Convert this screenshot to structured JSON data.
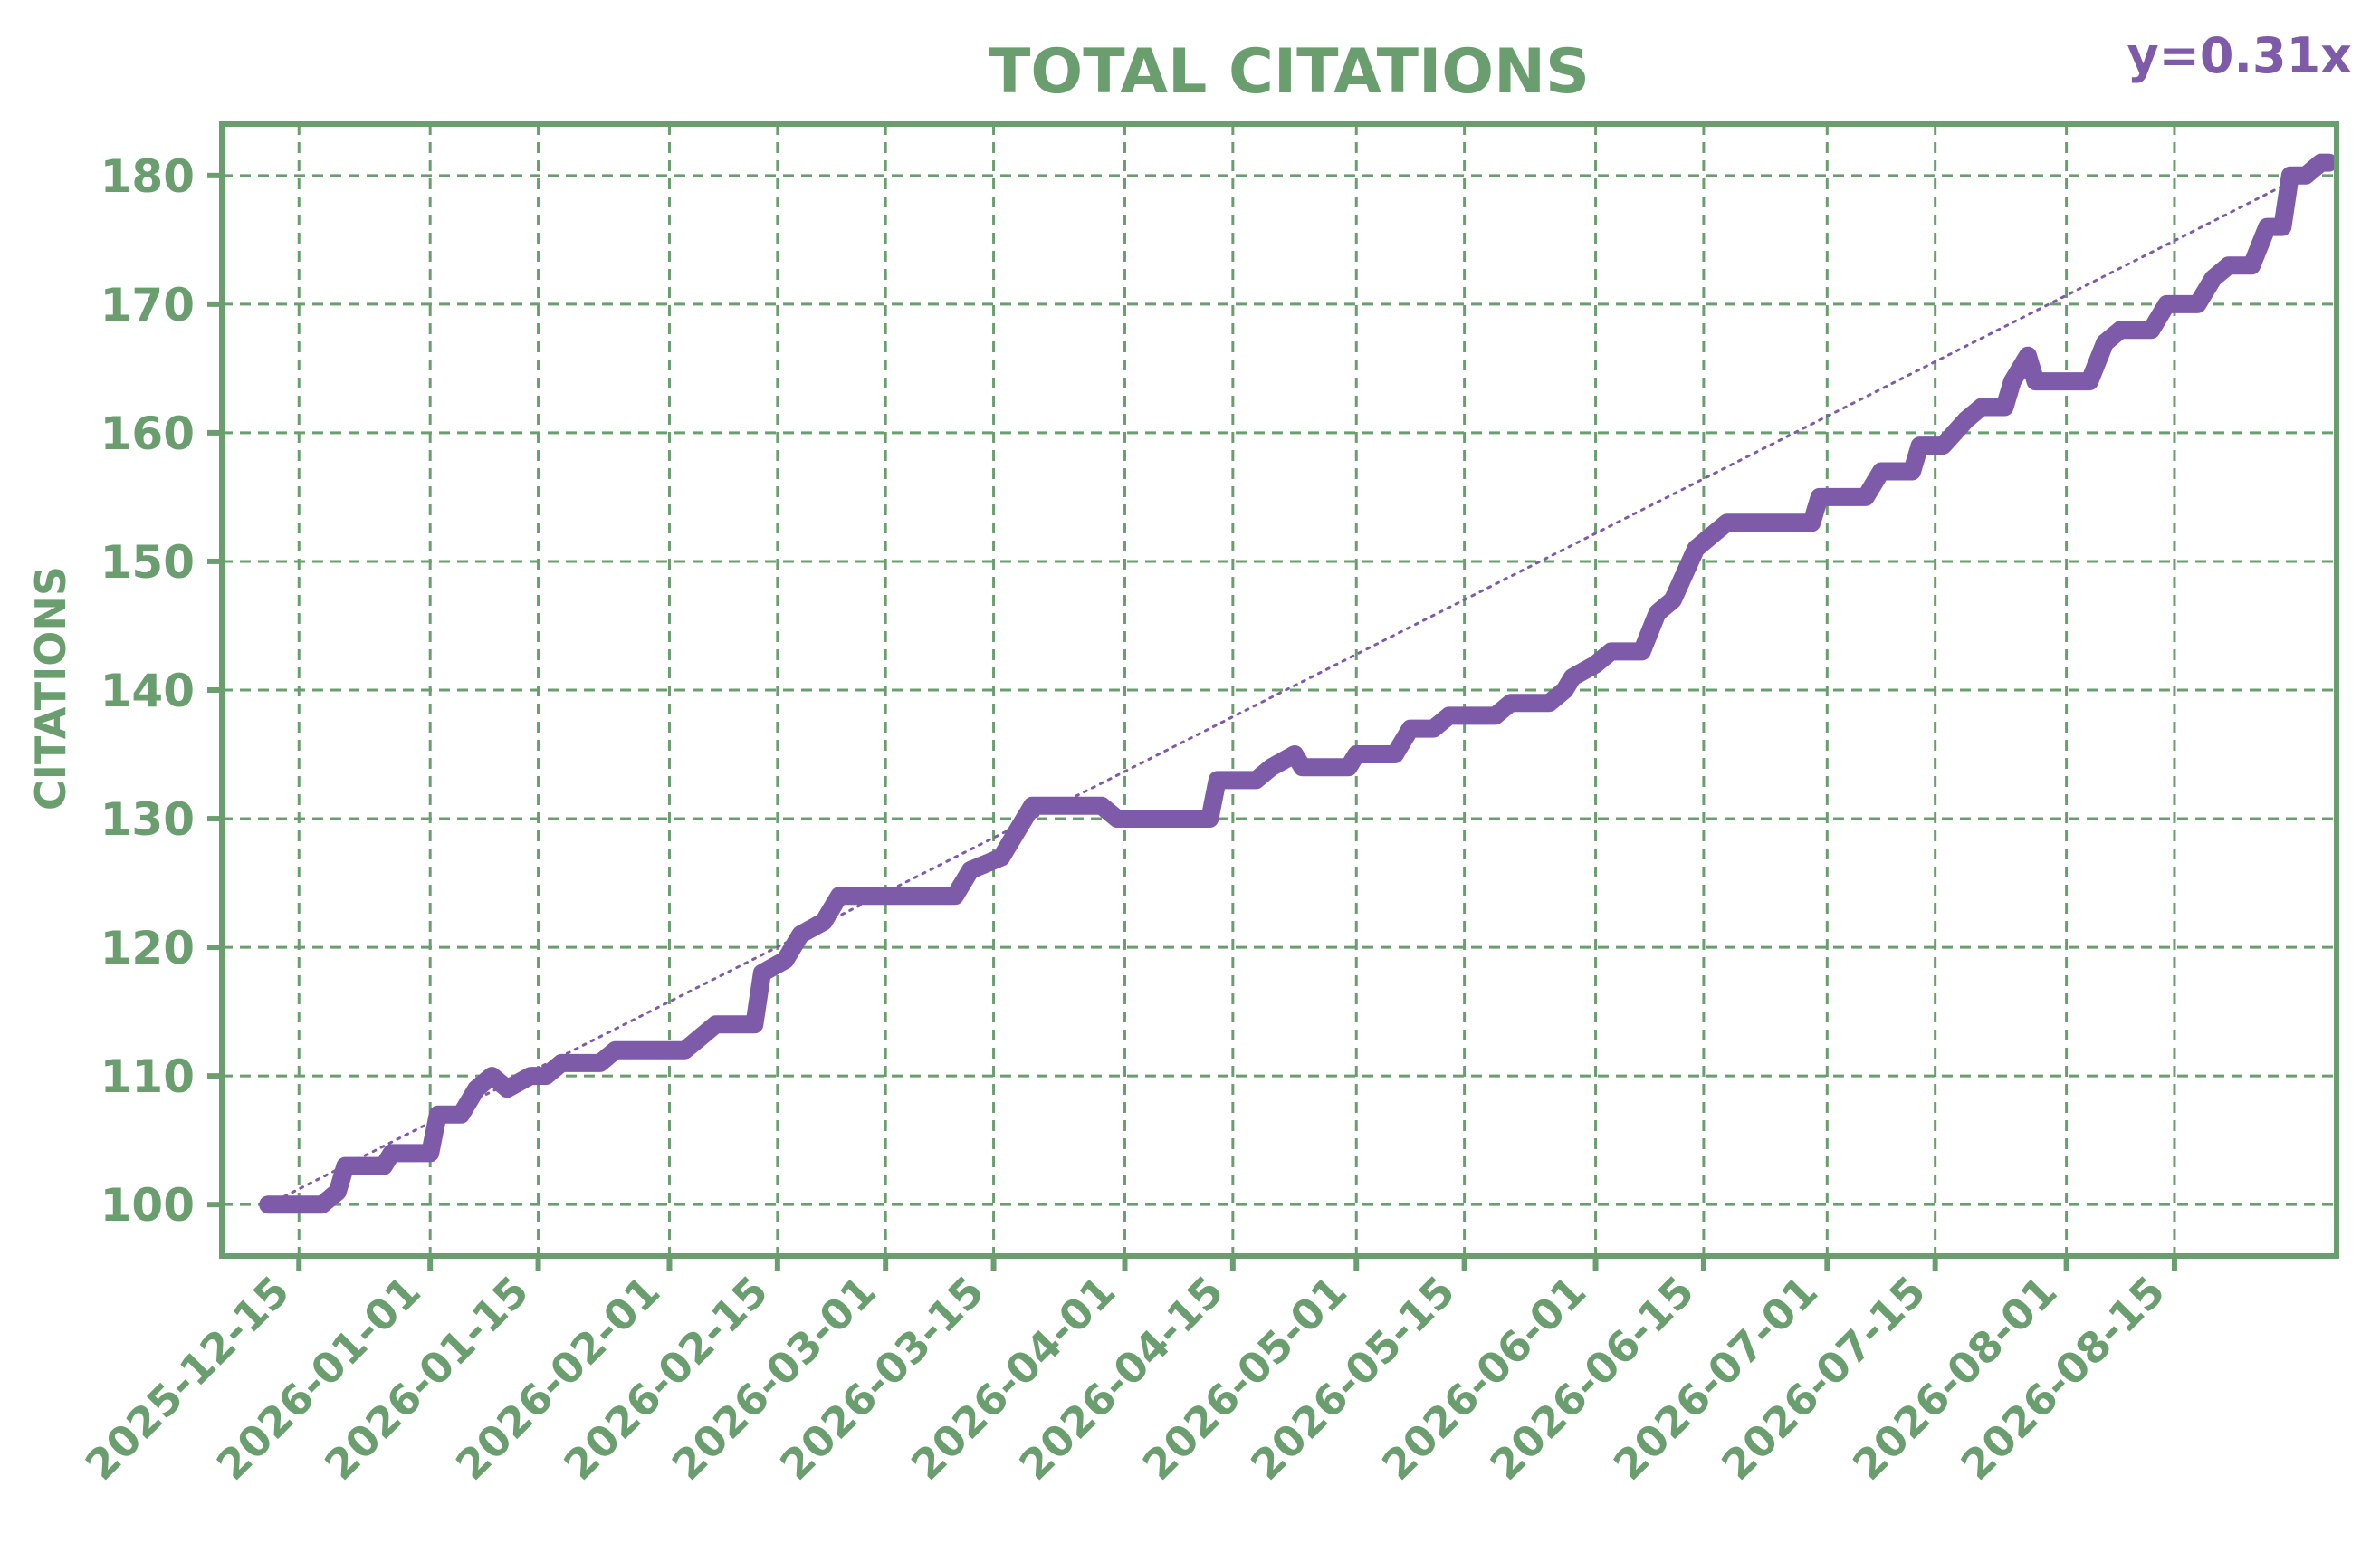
{
  "colors": {
    "axis": "#6b9e6f",
    "grid": "#6b9e6f",
    "series": "#7e5ba8",
    "trend": "#7e5ba8",
    "background": "#ffffff"
  },
  "chart_data": {
    "type": "line",
    "title": "TOTAL CITATIONS",
    "xlabel": "",
    "ylabel": "CITATIONS",
    "annotation": "y=0.31x",
    "grid": true,
    "xlim": [
      "2025-12-05",
      "2026-09-05"
    ],
    "ylim": [
      96,
      184
    ],
    "x_ticks": [
      "2025-12-15",
      "2026-01-01",
      "2026-01-15",
      "2026-02-01",
      "2026-02-15",
      "2026-03-01",
      "2026-03-15",
      "2026-04-01",
      "2026-04-15",
      "2026-05-01",
      "2026-05-15",
      "2026-06-01",
      "2026-06-15",
      "2026-07-01",
      "2026-07-15",
      "2026-08-01",
      "2026-08-15"
    ],
    "y_ticks": [
      100,
      110,
      120,
      130,
      140,
      150,
      160,
      170,
      180
    ],
    "series": [
      {
        "values": [
          [
            "2025-12-11",
            100
          ],
          [
            "2025-12-15",
            100
          ],
          [
            "2025-12-18",
            100
          ],
          [
            "2025-12-20",
            101
          ],
          [
            "2025-12-21",
            103
          ],
          [
            "2025-12-26",
            103
          ],
          [
            "2025-12-27",
            104
          ],
          [
            "2025-12-31",
            104
          ],
          [
            "2026-01-01",
            104
          ],
          [
            "2026-01-02",
            107
          ],
          [
            "2026-01-05",
            107
          ],
          [
            "2026-01-07",
            109
          ],
          [
            "2026-01-09",
            110
          ],
          [
            "2026-01-11",
            109
          ],
          [
            "2026-01-14",
            110
          ],
          [
            "2026-01-16",
            110
          ],
          [
            "2026-01-18",
            111
          ],
          [
            "2026-01-23",
            111
          ],
          [
            "2026-01-25",
            112
          ],
          [
            "2026-02-03",
            112
          ],
          [
            "2026-02-05",
            113
          ],
          [
            "2026-02-07",
            114
          ],
          [
            "2026-02-12",
            114
          ],
          [
            "2026-02-13",
            118
          ],
          [
            "2026-02-16",
            119
          ],
          [
            "2026-02-18",
            121
          ],
          [
            "2026-02-21",
            122
          ],
          [
            "2026-02-23",
            124
          ],
          [
            "2026-03-01",
            124
          ],
          [
            "2026-03-10",
            124
          ],
          [
            "2026-03-12",
            126
          ],
          [
            "2026-03-16",
            127
          ],
          [
            "2026-03-18",
            129
          ],
          [
            "2026-03-20",
            131
          ],
          [
            "2026-03-29",
            131
          ],
          [
            "2026-03-31",
            130
          ],
          [
            "2026-04-05",
            130
          ],
          [
            "2026-04-12",
            130
          ],
          [
            "2026-04-13",
            133
          ],
          [
            "2026-04-18",
            133
          ],
          [
            "2026-04-20",
            134
          ],
          [
            "2026-04-23",
            135
          ],
          [
            "2026-04-24",
            134
          ],
          [
            "2026-04-30",
            134
          ],
          [
            "2026-05-01",
            135
          ],
          [
            "2026-05-06",
            135
          ],
          [
            "2026-05-08",
            137
          ],
          [
            "2026-05-11",
            137
          ],
          [
            "2026-05-13",
            138
          ],
          [
            "2026-05-19",
            138
          ],
          [
            "2026-05-21",
            139
          ],
          [
            "2026-05-26",
            139
          ],
          [
            "2026-05-28",
            140
          ],
          [
            "2026-05-29",
            141
          ],
          [
            "2026-06-01",
            142
          ],
          [
            "2026-06-03",
            143
          ],
          [
            "2026-06-07",
            143
          ],
          [
            "2026-06-09",
            146
          ],
          [
            "2026-06-11",
            147
          ],
          [
            "2026-06-14",
            151
          ],
          [
            "2026-06-16",
            152
          ],
          [
            "2026-06-18",
            153
          ],
          [
            "2026-06-25",
            153
          ],
          [
            "2026-06-29",
            153
          ],
          [
            "2026-06-30",
            155
          ],
          [
            "2026-07-06",
            155
          ],
          [
            "2026-07-08",
            157
          ],
          [
            "2026-07-12",
            157
          ],
          [
            "2026-07-13",
            159
          ],
          [
            "2026-07-16",
            159
          ],
          [
            "2026-07-19",
            161
          ],
          [
            "2026-07-21",
            162
          ],
          [
            "2026-07-24",
            162
          ],
          [
            "2026-07-25",
            164
          ],
          [
            "2026-07-27",
            166
          ],
          [
            "2026-07-28",
            164
          ],
          [
            "2026-08-01",
            164
          ],
          [
            "2026-08-04",
            164
          ],
          [
            "2026-08-06",
            167
          ],
          [
            "2026-08-08",
            168
          ],
          [
            "2026-08-12",
            168
          ],
          [
            "2026-08-14",
            170
          ],
          [
            "2026-08-18",
            170
          ],
          [
            "2026-08-20",
            172
          ],
          [
            "2026-08-22",
            173
          ],
          [
            "2026-08-25",
            173
          ],
          [
            "2026-08-27",
            176
          ],
          [
            "2026-08-29",
            176
          ],
          [
            "2026-08-30",
            180
          ],
          [
            "2026-09-01",
            180
          ],
          [
            "2026-09-03",
            181
          ],
          [
            "2026-09-04",
            181
          ]
        ]
      }
    ],
    "trendline": {
      "values": [
        [
          "2025-12-11",
          100
        ],
        [
          "2026-09-04",
          181
        ]
      ]
    }
  }
}
